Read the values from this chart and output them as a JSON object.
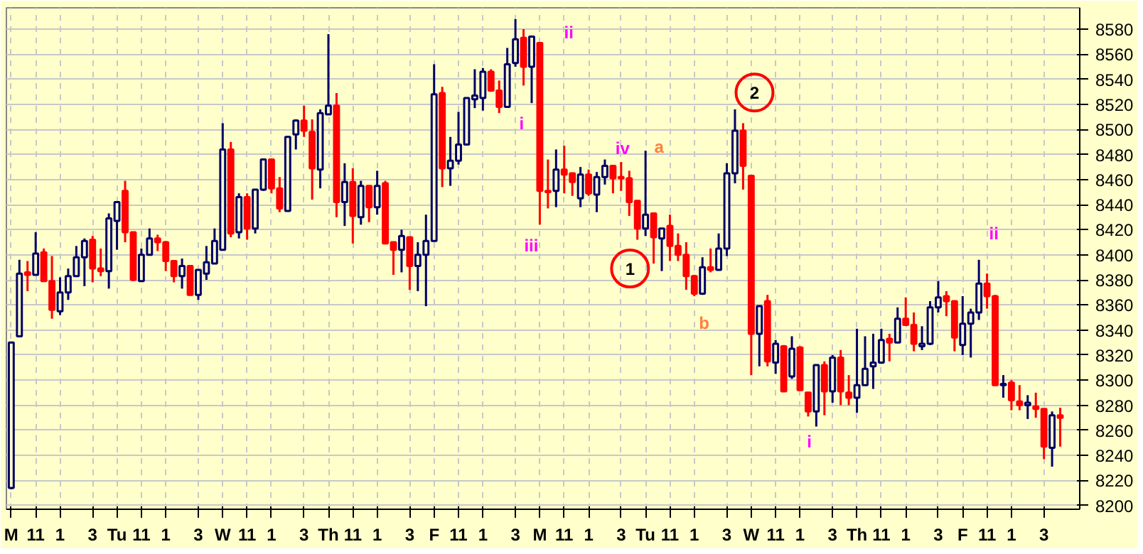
{
  "chart_data": {
    "type": "candlestick",
    "categories": [
      "M",
      null,
      null,
      "11",
      null,
      null,
      "1",
      null,
      null,
      null,
      "3",
      null,
      null,
      "Tu",
      null,
      null,
      "11",
      null,
      null,
      "1",
      null,
      null,
      null,
      "3",
      null,
      null,
      "W",
      null,
      null,
      "11",
      null,
      null,
      "1",
      null,
      null,
      null,
      "3",
      null,
      null,
      "Th",
      null,
      null,
      "11",
      null,
      null,
      "1",
      null,
      null,
      null,
      "3",
      null,
      null,
      "F",
      null,
      null,
      "11",
      null,
      null,
      "1",
      null,
      null,
      null,
      "3",
      null,
      null,
      "M",
      null,
      null,
      "11",
      null,
      null,
      "1",
      null,
      null,
      null,
      "3",
      null,
      null,
      "Tu",
      null,
      null,
      "11",
      null,
      null,
      "1",
      null,
      null,
      null,
      "3",
      null,
      null,
      "W",
      null,
      null,
      "11",
      null,
      null,
      "1",
      null,
      null,
      null,
      "3",
      null,
      null,
      "Th",
      null,
      null,
      "11",
      null,
      null,
      "1",
      null,
      null,
      null,
      "3",
      null,
      null,
      "F",
      null,
      null,
      "11",
      null,
      null,
      "1",
      null,
      null,
      null,
      "3",
      null,
      null
    ],
    "ohlc": [
      [
        8214,
        8330,
        8213,
        8330
      ],
      [
        8335,
        8396,
        8335,
        8385
      ],
      [
        8386,
        8395,
        8371,
        8384
      ],
      [
        8384,
        8418,
        8384,
        8401
      ],
      [
        8402,
        8405,
        8379,
        8379
      ],
      [
        8379,
        8399,
        8349,
        8356
      ],
      [
        8355,
        8382,
        8352,
        8370
      ],
      [
        8370,
        8389,
        8364,
        8383
      ],
      [
        8383,
        8407,
        8383,
        8398
      ],
      [
        8398,
        8413,
        8375,
        8411
      ],
      [
        8412,
        8415,
        8378,
        8389
      ],
      [
        8389,
        8405,
        8383,
        8387
      ],
      [
        8387,
        8433,
        8373,
        8429
      ],
      [
        8427,
        8442,
        8404,
        8442
      ],
      [
        8451,
        8459,
        8410,
        8418
      ],
      [
        8418,
        8418,
        8379,
        8380
      ],
      [
        8379,
        8405,
        8379,
        8400
      ],
      [
        8400,
        8421,
        8400,
        8413
      ],
      [
        8413,
        8416,
        8403,
        8410
      ],
      [
        8410,
        8411,
        8387,
        8395
      ],
      [
        8395,
        8395,
        8378,
        8383
      ],
      [
        8383,
        8397,
        8373,
        8391
      ],
      [
        8391,
        8391,
        8368,
        8368
      ],
      [
        8368,
        8388,
        8364,
        8388
      ],
      [
        8385,
        8407,
        8380,
        8394
      ],
      [
        8393,
        8421,
        8393,
        8411
      ],
      [
        8404,
        8505,
        8404,
        8484
      ],
      [
        8484,
        8490,
        8414,
        8417
      ],
      [
        8418,
        8449,
        8413,
        8446
      ],
      [
        8446,
        8449,
        8412,
        8421
      ],
      [
        8421,
        8452,
        8417,
        8452
      ],
      [
        8452,
        8476,
        8451,
        8476
      ],
      [
        8476,
        8476,
        8449,
        8453
      ],
      [
        8453,
        8462,
        8434,
        8437
      ],
      [
        8435,
        8494,
        8435,
        8494
      ],
      [
        8496,
        8508,
        8484,
        8507
      ],
      [
        8507,
        8519,
        8494,
        8499
      ],
      [
        8498,
        8508,
        8444,
        8469
      ],
      [
        8468,
        8516,
        8453,
        8513
      ],
      [
        8512,
        8576,
        8512,
        8519
      ],
      [
        8519,
        8529,
        8430,
        8442
      ],
      [
        8442,
        8473,
        8423,
        8458
      ],
      [
        8458,
        8469,
        8409,
        8431
      ],
      [
        8430,
        8459,
        8424,
        8455
      ],
      [
        8455,
        8455,
        8426,
        8438
      ],
      [
        8438,
        8467,
        8432,
        8455
      ],
      [
        8457,
        8459,
        8409,
        8409
      ],
      [
        8410,
        8410,
        8384,
        8404
      ],
      [
        8404,
        8420,
        8386,
        8415
      ],
      [
        8414,
        8414,
        8372,
        8391
      ],
      [
        8391,
        8410,
        8371,
        8400
      ],
      [
        8400,
        8432,
        8359,
        8411
      ],
      [
        8411,
        8552,
        8411,
        8528
      ],
      [
        8529,
        8534,
        8454,
        8469
      ],
      [
        8469,
        8494,
        8455,
        8475
      ],
      [
        8475,
        8514,
        8472,
        8488
      ],
      [
        8488,
        8525,
        8488,
        8525
      ],
      [
        8524,
        8548,
        8517,
        8527
      ],
      [
        8525,
        8549,
        8515,
        8546
      ],
      [
        8546,
        8548,
        8530,
        8531
      ],
      [
        8531,
        8539,
        8513,
        8518
      ],
      [
        8518,
        8565,
        8518,
        8552
      ],
      [
        8553,
        8588,
        8550,
        8572
      ],
      [
        8573,
        8580,
        8535,
        8550
      ],
      [
        8550,
        8574,
        8521,
        8574
      ],
      [
        8569,
        8569,
        8424,
        8451
      ],
      [
        8451,
        8476,
        8437,
        8450
      ],
      [
        8451,
        8484,
        8438,
        8468
      ],
      [
        8468,
        8487,
        8449,
        8464
      ],
      [
        8465,
        8465,
        8447,
        8458
      ],
      [
        8445,
        8470,
        8438,
        8464
      ],
      [
        8464,
        8468,
        8447,
        8449
      ],
      [
        8448,
        8466,
        8434,
        8462
      ],
      [
        8462,
        8476,
        8456,
        8471
      ],
      [
        8471,
        8471,
        8449,
        8461
      ],
      [
        8462,
        8474,
        8451,
        8461
      ],
      [
        8461,
        8467,
        8431,
        8442
      ],
      [
        8443,
        8443,
        8412,
        8421
      ],
      [
        8421,
        8483,
        8415,
        8432
      ],
      [
        8433,
        8433,
        8393,
        8414
      ],
      [
        8413,
        8421,
        8387,
        8421
      ],
      [
        8423,
        8432,
        8395,
        8407
      ],
      [
        8407,
        8417,
        8395,
        8400
      ],
      [
        8400,
        8410,
        8372,
        8383
      ],
      [
        8383,
        8384,
        8367,
        8369
      ],
      [
        8369,
        8398,
        8368,
        8390
      ],
      [
        8390,
        8405,
        8386,
        8388
      ],
      [
        8388,
        8417,
        8388,
        8405
      ],
      [
        8405,
        8473,
        8399,
        8465
      ],
      [
        8465,
        8516,
        8457,
        8499
      ],
      [
        8499,
        8505,
        8452,
        8471
      ],
      [
        8463,
        8463,
        8304,
        8337
      ],
      [
        8337,
        8359,
        8311,
        8359
      ],
      [
        8363,
        8368,
        8311,
        8315
      ],
      [
        8314,
        8332,
        8305,
        8329
      ],
      [
        8327,
        8328,
        8291,
        8291
      ],
      [
        8303,
        8335,
        8301,
        8325
      ],
      [
        8326,
        8327,
        8292,
        8292
      ],
      [
        8290,
        8290,
        8271,
        8275
      ],
      [
        8275,
        8312,
        8263,
        8312
      ],
      [
        8312,
        8315,
        8272,
        8291
      ],
      [
        8291,
        8320,
        8282,
        8318
      ],
      [
        8318,
        8324,
        8280,
        8291
      ],
      [
        8290,
        8304,
        8280,
        8286
      ],
      [
        8286,
        8341,
        8274,
        8296
      ],
      [
        8296,
        8335,
        8296,
        8309
      ],
      [
        8311,
        8337,
        8293,
        8314
      ],
      [
        8314,
        8341,
        8313,
        8332
      ],
      [
        8333,
        8337,
        8315,
        8330
      ],
      [
        8330,
        8358,
        8330,
        8349
      ],
      [
        8349,
        8366,
        8344,
        8344
      ],
      [
        8344,
        8354,
        8323,
        8329
      ],
      [
        8327,
        8343,
        8324,
        8329
      ],
      [
        8329,
        8363,
        8328,
        8358
      ],
      [
        8358,
        8379,
        8354,
        8366
      ],
      [
        8367,
        8371,
        8351,
        8363
      ],
      [
        8363,
        8363,
        8323,
        8334
      ],
      [
        8328,
        8367,
        8320,
        8345
      ],
      [
        8345,
        8357,
        8318,
        8354
      ],
      [
        8354,
        8396,
        8348,
        8377
      ],
      [
        8377,
        8385,
        8357,
        8367
      ],
      [
        8367,
        8368,
        8296,
        8296
      ],
      [
        8296,
        8304,
        8286,
        8297
      ],
      [
        8298,
        8300,
        8276,
        8284
      ],
      [
        8283,
        8296,
        8276,
        8280
      ],
      [
        8280,
        8288,
        8269,
        8282
      ],
      [
        8279,
        8290,
        8270,
        8277
      ],
      [
        8277,
        8277,
        8237,
        8247
      ],
      [
        8246,
        8275,
        8231,
        8272
      ],
      [
        8272,
        8278,
        8247,
        8270
      ]
    ],
    "colors": [
      "#000066",
      "#000066",
      "#ff0000",
      "#000066",
      "#ff0000",
      "#ff0000",
      "#000066",
      "#000066",
      "#000066",
      "#000066",
      "#ff0000",
      "#ff0000",
      "#000066",
      "#000066",
      "#ff0000",
      "#ff0000",
      "#000066",
      "#000066",
      "#ff0000",
      "#ff0000",
      "#ff0000",
      "#000066",
      "#ff0000",
      "#000066",
      "#000066",
      "#000066",
      "#000066",
      "#ff0000",
      "#000066",
      "#ff0000",
      "#000066",
      "#000066",
      "#ff0000",
      "#ff0000",
      "#000066",
      "#000066",
      "#ff0000",
      "#ff0000",
      "#000066",
      "#000066",
      "#ff0000",
      "#000066",
      "#ff0000",
      "#000066",
      "#ff0000",
      "#000066",
      "#ff0000",
      "#ff0000",
      "#000066",
      "#ff0000",
      "#000066",
      "#000066",
      "#000066",
      "#ff0000",
      "#000066",
      "#000066",
      "#000066",
      "#000066",
      "#000066",
      "#ff0000",
      "#ff0000",
      "#000066",
      "#000066",
      "#ff0000",
      "#000066",
      "#ff0000",
      "#ff0000",
      "#000066",
      "#ff0000",
      "#ff0000",
      "#000066",
      "#ff0000",
      "#000066",
      "#000066",
      "#ff0000",
      "#ff0000",
      "#ff0000",
      "#ff0000",
      "#000066",
      "#ff0000",
      "#000066",
      "#ff0000",
      "#ff0000",
      "#ff0000",
      "#ff0000",
      "#000066",
      "#ff0000",
      "#000066",
      "#000066",
      "#000066",
      "#ff0000",
      "#ff0000",
      "#000066",
      "#ff0000",
      "#000066",
      "#ff0000",
      "#000066",
      "#ff0000",
      "#ff0000",
      "#000066",
      "#ff0000",
      "#000066",
      "#ff0000",
      "#ff0000",
      "#000066",
      "#000066",
      "#000066",
      "#000066",
      "#ff0000",
      "#000066",
      "#ff0000",
      "#ff0000",
      "#000066",
      "#000066",
      "#000066",
      "#ff0000",
      "#ff0000",
      "#000066",
      "#000066",
      "#000066",
      "#ff0000",
      "#ff0000",
      "#000066",
      "#ff0000",
      "#ff0000",
      "#000066",
      "#ff0000",
      "#ff0000",
      "#000066",
      "#ff0000"
    ],
    "ylim": [
      8197,
      8597
    ],
    "yticks": [
      8200,
      8220,
      8240,
      8260,
      8280,
      8300,
      8320,
      8340,
      8360,
      8380,
      8400,
      8420,
      8440,
      8460,
      8480,
      8500,
      8520,
      8540,
      8560,
      8580
    ],
    "grid": true,
    "annotations": [
      "ii",
      "i",
      "iii",
      "iv",
      "a",
      "1",
      "b",
      "2",
      "i",
      "ii"
    ]
  }
}
